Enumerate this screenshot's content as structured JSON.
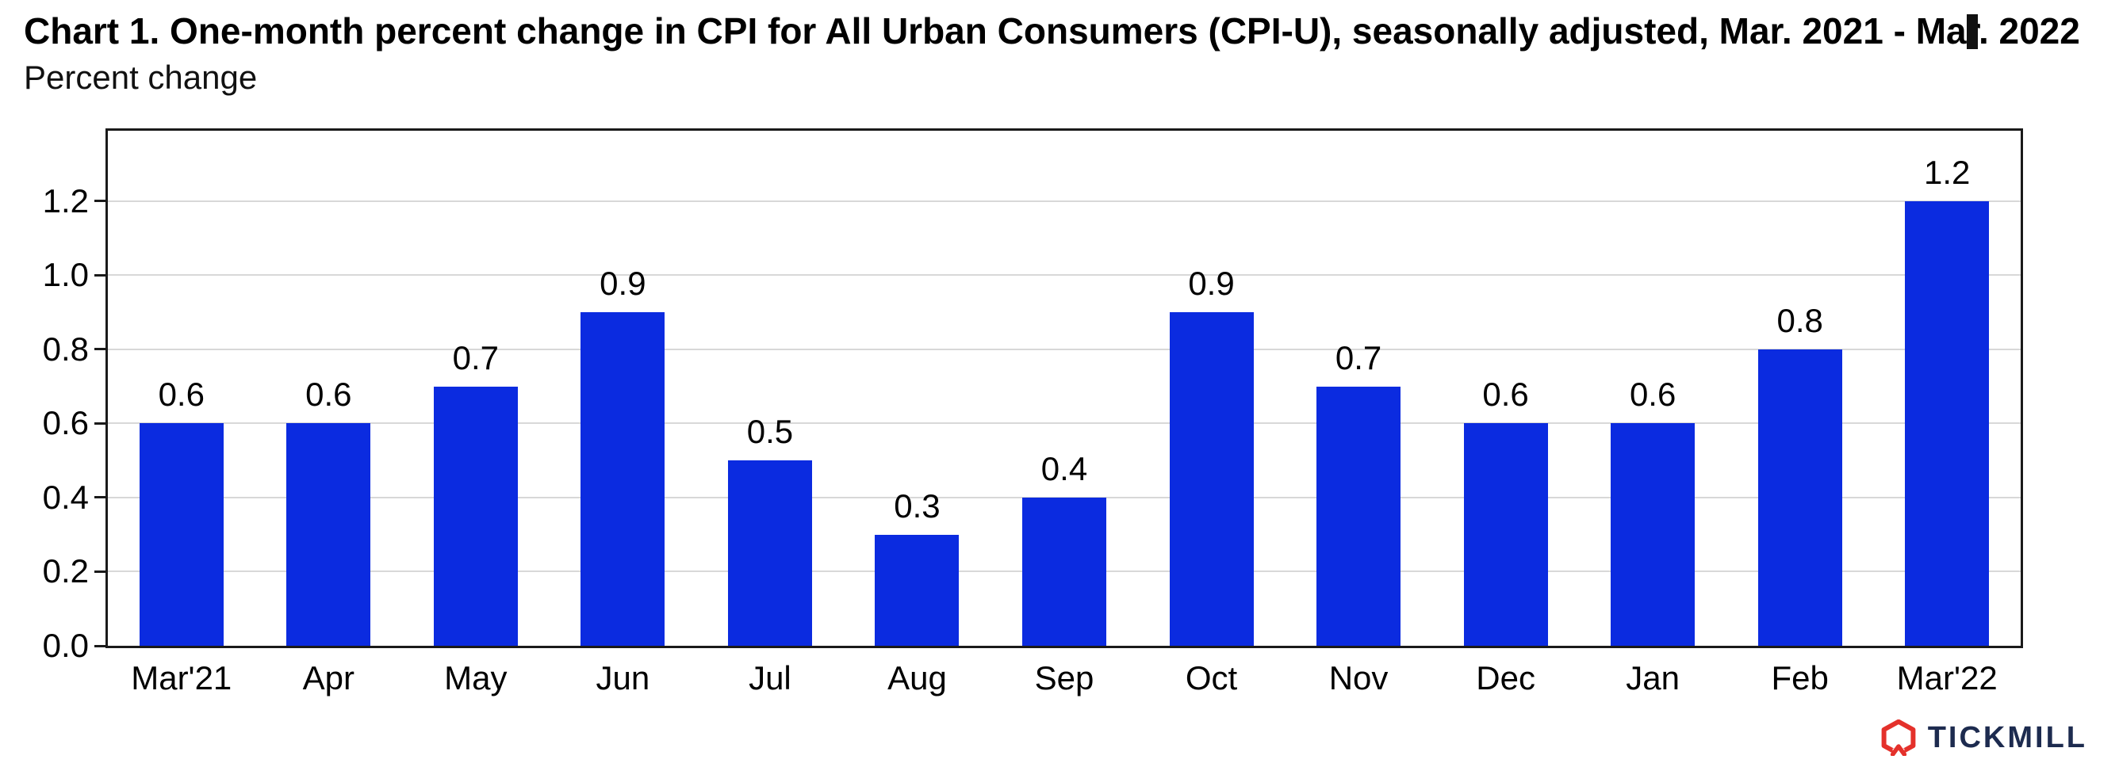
{
  "header": {
    "title": "Chart 1. One-month percent change in CPI for All Urban Consumers (CPI-U), seasonally adjusted, Mar. 2021 - Mar. 2022",
    "subtitle": "Percent change"
  },
  "chart_data": {
    "type": "bar",
    "categories": [
      "Mar'21",
      "Apr",
      "May",
      "Jun",
      "Jul",
      "Aug",
      "Sep",
      "Oct",
      "Nov",
      "Dec",
      "Jan",
      "Feb",
      "Mar'22"
    ],
    "values": [
      0.6,
      0.6,
      0.7,
      0.9,
      0.5,
      0.3,
      0.4,
      0.9,
      0.7,
      0.6,
      0.6,
      0.8,
      1.2
    ],
    "title": "Chart 1. One-month percent change in CPI for All Urban Consumers (CPI-U), seasonally adjusted, Mar. 2021 - Mar. 2022",
    "xlabel": "",
    "ylabel": "Percent change",
    "ylim": [
      0,
      1.39
    ],
    "yticks": [
      0.0,
      0.2,
      0.4,
      0.6,
      0.8,
      1.0,
      1.2
    ],
    "grid": true,
    "legend": "none",
    "bar_color": "#0b2be0",
    "value_labels": true
  },
  "footer": {
    "brand": "TICKMILL",
    "brand_color": "#1d2b4f",
    "icon_color": "#e4312b"
  }
}
